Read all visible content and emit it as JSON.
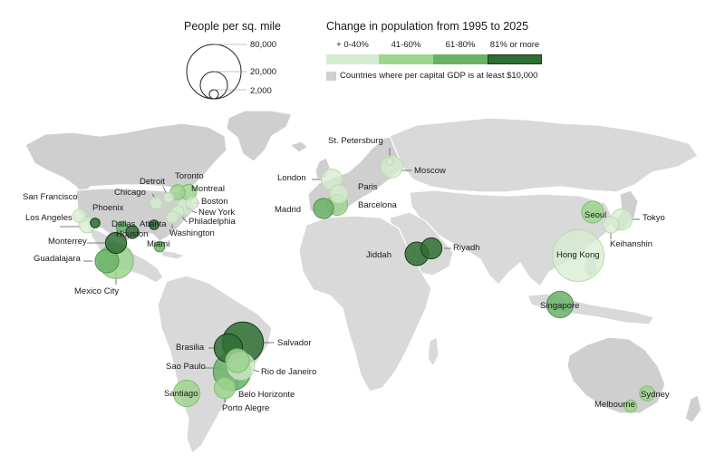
{
  "density_legend": {
    "title": "People per sq. mile",
    "values": [
      "80,000",
      "20,000",
      "2,000"
    ]
  },
  "change_legend": {
    "title": "Change in population from 1995 to 2025",
    "bins": [
      {
        "label": "+ 0-40%",
        "color": "#d6ecd0"
      },
      {
        "label": "41-60%",
        "color": "#9fd48f"
      },
      {
        "label": "61-80%",
        "color": "#6bb267"
      },
      {
        "label": "81% or more",
        "color": "#2f6e34"
      }
    ],
    "gdp_note": "Countries where per capital GDP is at least $10,000"
  },
  "colors": {
    "land": "#d9d9d9",
    "rich_land": "#cfcfcf",
    "bubble_stroke": "#ffffff"
  },
  "cities": [
    {
      "name": "San Francisco",
      "density": 5000,
      "bin": 0
    },
    {
      "name": "Los Angeles",
      "density": 7000,
      "bin": 0
    },
    {
      "name": "Phoenix",
      "density": 2500,
      "bin": 3
    },
    {
      "name": "Chicago",
      "density": 4000,
      "bin": 0
    },
    {
      "name": "Detroit",
      "density": 3000,
      "bin": 0
    },
    {
      "name": "Toronto",
      "density": 6000,
      "bin": 1
    },
    {
      "name": "Montreal",
      "density": 6500,
      "bin": 1
    },
    {
      "name": "Boston",
      "density": 4000,
      "bin": 0
    },
    {
      "name": "New York",
      "density": 7000,
      "bin": 0
    },
    {
      "name": "Philadelphia",
      "density": 4500,
      "bin": 0
    },
    {
      "name": "Washington",
      "density": 4000,
      "bin": 0
    },
    {
      "name": "Dallas",
      "density": 3000,
      "bin": 2
    },
    {
      "name": "Atlanta",
      "density": 2500,
      "bin": 3
    },
    {
      "name": "Houston",
      "density": 4500,
      "bin": 3
    },
    {
      "name": "Miami",
      "density": 3000,
      "bin": 2
    },
    {
      "name": "Monterrey",
      "density": 12000,
      "bin": 3
    },
    {
      "name": "Guadalajara",
      "density": 15000,
      "bin": 2
    },
    {
      "name": "Mexico City",
      "density": 33000,
      "bin": 1
    },
    {
      "name": "London",
      "density": 12000,
      "bin": 0
    },
    {
      "name": "Paris",
      "density": 9000,
      "bin": 0
    },
    {
      "name": "Madrid",
      "density": 11000,
      "bin": 2
    },
    {
      "name": "Barcelona",
      "density": 12000,
      "bin": 1
    },
    {
      "name": "St. Petersburg",
      "density": 1000,
      "bin": 0
    },
    {
      "name": "Moscow",
      "density": 13000,
      "bin": 0
    },
    {
      "name": "Jiddah",
      "density": 15000,
      "bin": 3
    },
    {
      "name": "Riyadh",
      "density": 12000,
      "bin": 3
    },
    {
      "name": "Seoul",
      "density": 13000,
      "bin": 1
    },
    {
      "name": "Tokyo",
      "density": 12000,
      "bin": 0
    },
    {
      "name": "Keihanshin",
      "density": 7000,
      "bin": 0
    },
    {
      "name": "Hong Kong",
      "density": 72000,
      "bin": 0
    },
    {
      "name": "Singapore",
      "density": 19000,
      "bin": 2
    },
    {
      "name": "Salvador",
      "density": 46000,
      "bin": 3
    },
    {
      "name": "Brasilia",
      "density": 22000,
      "bin": 3
    },
    {
      "name": "Sao Paulo",
      "density": 38000,
      "bin": 2
    },
    {
      "name": "Rio de Janeiro",
      "density": 20000,
      "bin": 0
    },
    {
      "name": "Belo Horizonte",
      "density": 15000,
      "bin": 1
    },
    {
      "name": "Porto Alegre",
      "density": 12000,
      "bin": 1
    },
    {
      "name": "Santiago",
      "density": 19000,
      "bin": 1
    },
    {
      "name": "Sydney",
      "density": 6000,
      "bin": 1
    },
    {
      "name": "Melbourne",
      "density": 4000,
      "bin": 1
    }
  ]
}
